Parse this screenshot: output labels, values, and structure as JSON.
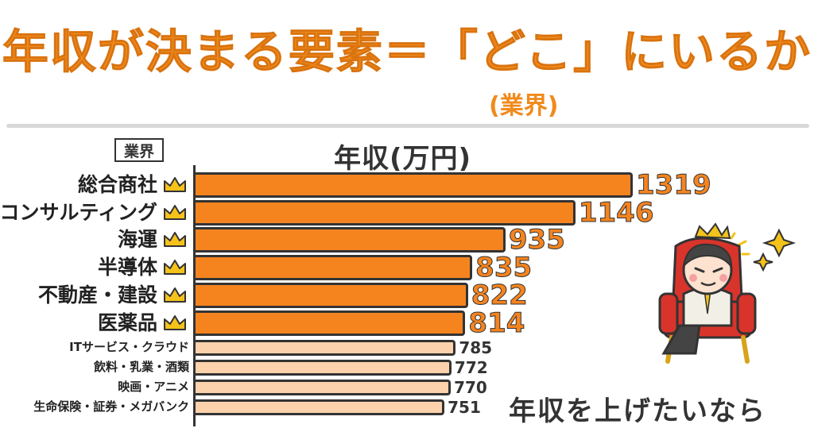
{
  "headline": {
    "main": "年収が決まる要素＝「どこ」にいるか",
    "sub": "(業界)"
  },
  "chart_data": {
    "type": "bar",
    "orientation": "horizontal",
    "title": "年収(万円)",
    "category_header": "業界",
    "categories": [
      "総合商社",
      "コンサルティング",
      "海運",
      "半導体",
      "不動産・建設",
      "医薬品",
      "ITサービス・クラウド",
      "飲料・乳業・酒類",
      "映画・アニメ",
      "生命保険・証券・メガバンク"
    ],
    "values": [
      1319,
      1146,
      935,
      835,
      822,
      814,
      785,
      772,
      770,
      751
    ],
    "highlighted": [
      true,
      true,
      true,
      true,
      true,
      true,
      false,
      false,
      false,
      false
    ],
    "colors": {
      "highlight": "#f5841f",
      "normal": "#fbd2ab",
      "outline": "#333333",
      "crown": "#f4c21a"
    }
  },
  "tagline": "年収を上げたいなら"
}
